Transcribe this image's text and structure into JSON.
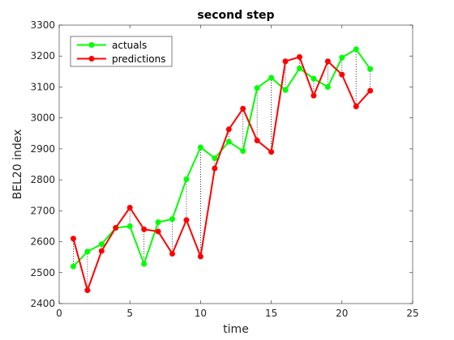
{
  "chart_data": {
    "type": "line",
    "title": "second step",
    "xlabel": "time",
    "ylabel": "BEL20 index",
    "xlim": [
      0,
      25
    ],
    "ylim": [
      2400,
      3300
    ],
    "xticks": [
      0,
      5,
      10,
      15,
      20,
      25
    ],
    "yticks": [
      2400,
      2500,
      2600,
      2700,
      2800,
      2900,
      3000,
      3100,
      3200,
      3300
    ],
    "x": [
      1,
      2,
      3,
      4,
      5,
      6,
      7,
      8,
      9,
      10,
      11,
      12,
      13,
      14,
      15,
      16,
      17,
      18,
      19,
      20,
      21,
      22
    ],
    "legend_position": "top-left",
    "series": [
      {
        "name": "actuals",
        "color": "#00ff00",
        "values": [
          2520,
          2568,
          2592,
          2645,
          2650,
          2528,
          2663,
          2673,
          2802,
          2905,
          2870,
          2923,
          2893,
          3097,
          3130,
          3090,
          3160,
          3127,
          3100,
          3195,
          3222,
          3158
        ]
      },
      {
        "name": "predictions",
        "color": "#ff0000",
        "values": [
          2610,
          2443,
          2570,
          2645,
          2710,
          2640,
          2633,
          2561,
          2670,
          2552,
          2837,
          2963,
          3030,
          2927,
          2890,
          3183,
          3197,
          3072,
          3183,
          3140,
          3037,
          3088
        ]
      }
    ]
  }
}
